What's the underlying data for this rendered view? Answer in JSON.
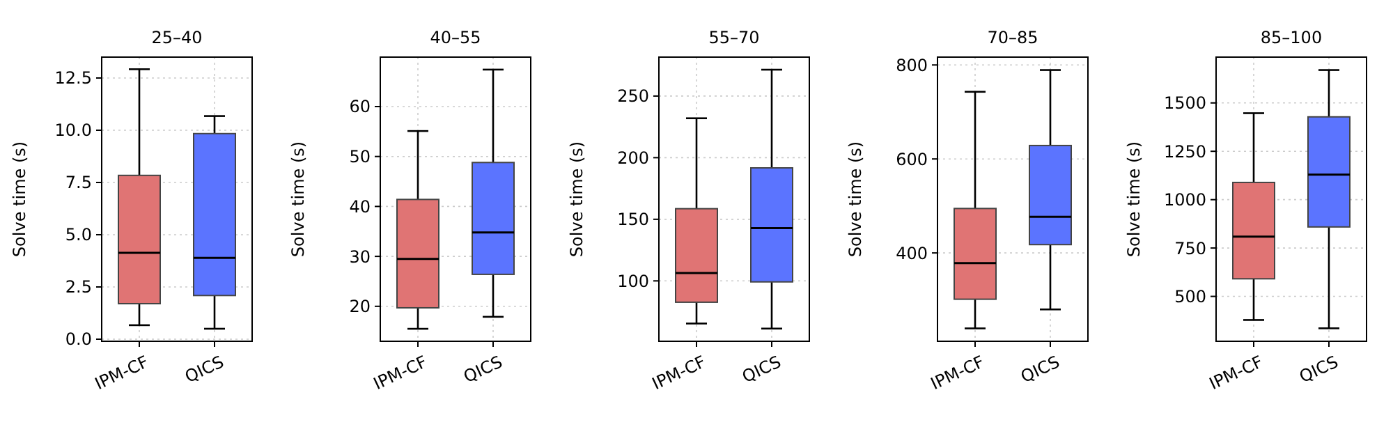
{
  "chart_data": [
    {
      "type": "box",
      "title": "25–40",
      "ylabel": "Solve time (s)",
      "categories": [
        "IPM-CF",
        "QICS"
      ],
      "colors": [
        "#e07474",
        "#5b74ff"
      ],
      "grid": true,
      "ylim": [
        -0.1,
        13.5
      ],
      "yticks": [
        {
          "value": 0,
          "label": "0.0"
        },
        2.5,
        {
          "value": 5,
          "label": "5.0"
        },
        7.5,
        {
          "value": 10,
          "label": "10.0"
        },
        12.5
      ],
      "boxes": [
        {
          "low": 0.67,
          "q1": 1.7,
          "median": 4.13,
          "q3": 7.84,
          "high": 12.92
        },
        {
          "low": 0.5,
          "q1": 2.09,
          "median": 3.89,
          "q3": 9.84,
          "high": 10.68
        }
      ]
    },
    {
      "type": "box",
      "title": "40–55",
      "ylabel": "Solve time (s)",
      "categories": [
        "IPM-CF",
        "QICS"
      ],
      "colors": [
        "#e07474",
        "#5b74ff"
      ],
      "grid": true,
      "ylim": [
        13,
        69.9
      ],
      "yticks": [
        20,
        30,
        40,
        50,
        60
      ],
      "boxes": [
        {
          "low": 15.5,
          "q1": 19.7,
          "median": 29.5,
          "q3": 41.4,
          "high": 55.1
        },
        {
          "low": 17.9,
          "q1": 26.4,
          "median": 34.8,
          "q3": 48.8,
          "high": 67.4
        }
      ]
    },
    {
      "type": "box",
      "title": "55–70",
      "ylabel": "Solve time (s)",
      "categories": [
        "IPM-CF",
        "QICS"
      ],
      "colors": [
        "#e07474",
        "#5b74ff"
      ],
      "grid": true,
      "ylim": [
        51,
        281.6
      ],
      "yticks": [
        100,
        150,
        200,
        250
      ],
      "boxes": [
        {
          "low": 65.4,
          "q1": 82.7,
          "median": 106.4,
          "q3": 158.6,
          "high": 232
        },
        {
          "low": 61.3,
          "q1": 99.2,
          "median": 142.9,
          "q3": 191.7,
          "high": 271.4
        }
      ]
    },
    {
      "type": "box",
      "title": "70–85",
      "ylabel": "Solve time (s)",
      "categories": [
        "IPM-CF",
        "QICS"
      ],
      "colors": [
        "#e07474",
        "#5b74ff"
      ],
      "grid": true,
      "ylim": [
        212,
        816.7
      ],
      "yticks": [
        400,
        600,
        800
      ],
      "boxes": [
        {
          "low": 239.4,
          "q1": 301.5,
          "median": 378.3,
          "q3": 494.6,
          "high": 742.9
        },
        {
          "low": 279.8,
          "q1": 417.7,
          "median": 476.8,
          "q3": 628.6,
          "high": 789.2
        }
      ]
    },
    {
      "type": "box",
      "title": "85–100",
      "ylabel": "Solve time (s)",
      "categories": [
        "IPM-CF",
        "QICS"
      ],
      "colors": [
        "#e07474",
        "#5b74ff"
      ],
      "grid": true,
      "ylim": [
        268,
        1736.8
      ],
      "yticks": [
        500,
        750,
        1000,
        1250,
        1500
      ],
      "boxes": [
        {
          "low": 378,
          "q1": 591,
          "median": 809,
          "q3": 1089,
          "high": 1447
        },
        {
          "low": 335,
          "q1": 859,
          "median": 1129,
          "q3": 1428,
          "high": 1670
        }
      ]
    }
  ]
}
